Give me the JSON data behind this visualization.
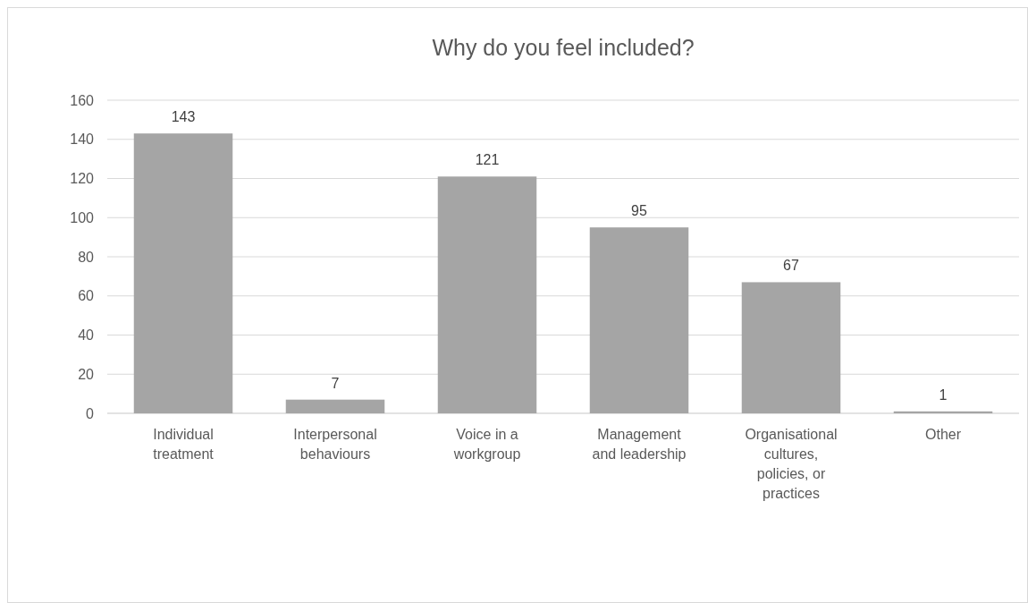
{
  "chart_data": {
    "type": "bar",
    "title": "Why do you feel included?",
    "categories": [
      "Individual treatment",
      "Interpersonal behaviours",
      "Voice in a workgroup",
      "Management and leadership",
      "Organisational cultures, policies, or practices",
      "Other"
    ],
    "values": [
      143,
      7,
      121,
      95,
      67,
      1
    ],
    "color": "#a5a5a5",
    "ylim": [
      0,
      160
    ],
    "yticks": [
      0,
      20,
      40,
      60,
      80,
      100,
      120,
      140,
      160
    ],
    "grid": "y",
    "data_labels": true
  }
}
